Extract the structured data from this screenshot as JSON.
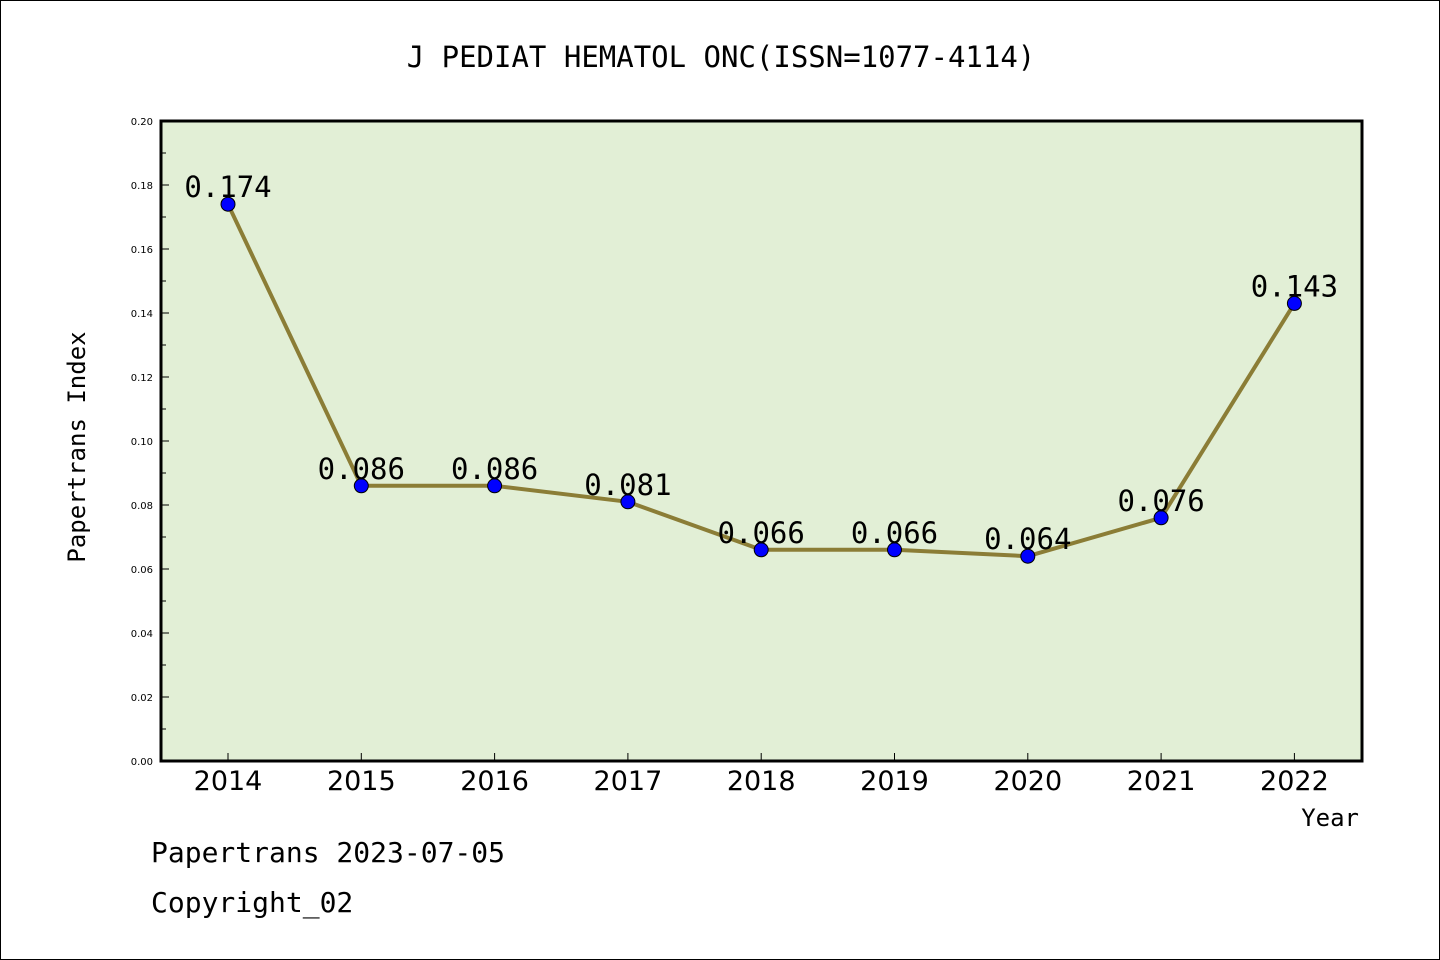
{
  "chart_data": {
    "type": "line",
    "title": "J PEDIAT HEMATOL ONC(ISSN=1077-4114)",
    "xlabel": "Year",
    "ylabel": "Papertrans Index",
    "categories": [
      "2014",
      "2015",
      "2016",
      "2017",
      "2018",
      "2019",
      "2020",
      "2021",
      "2022"
    ],
    "values": [
      0.174,
      0.086,
      0.086,
      0.081,
      0.066,
      0.066,
      0.064,
      0.076,
      0.143
    ],
    "data_labels": [
      "0.174",
      "0.086",
      "0.086",
      "0.081",
      "0.066",
      "0.066",
      "0.064",
      "0.076",
      "0.143"
    ],
    "ylim": [
      0,
      0.2
    ],
    "y_ticks": [
      "0.00",
      "0.02",
      "0.04",
      "0.06",
      "0.08",
      "0.10",
      "0.12",
      "0.14",
      "0.16",
      "0.18",
      "0.20"
    ],
    "grid": false,
    "colors": {
      "plot_background": "#e2efd6",
      "line": "#8b7d36",
      "marker": "#0000ff"
    }
  },
  "footer": {
    "line1": "Papertrans 2023-07-05",
    "line2": "Copyright_02"
  }
}
